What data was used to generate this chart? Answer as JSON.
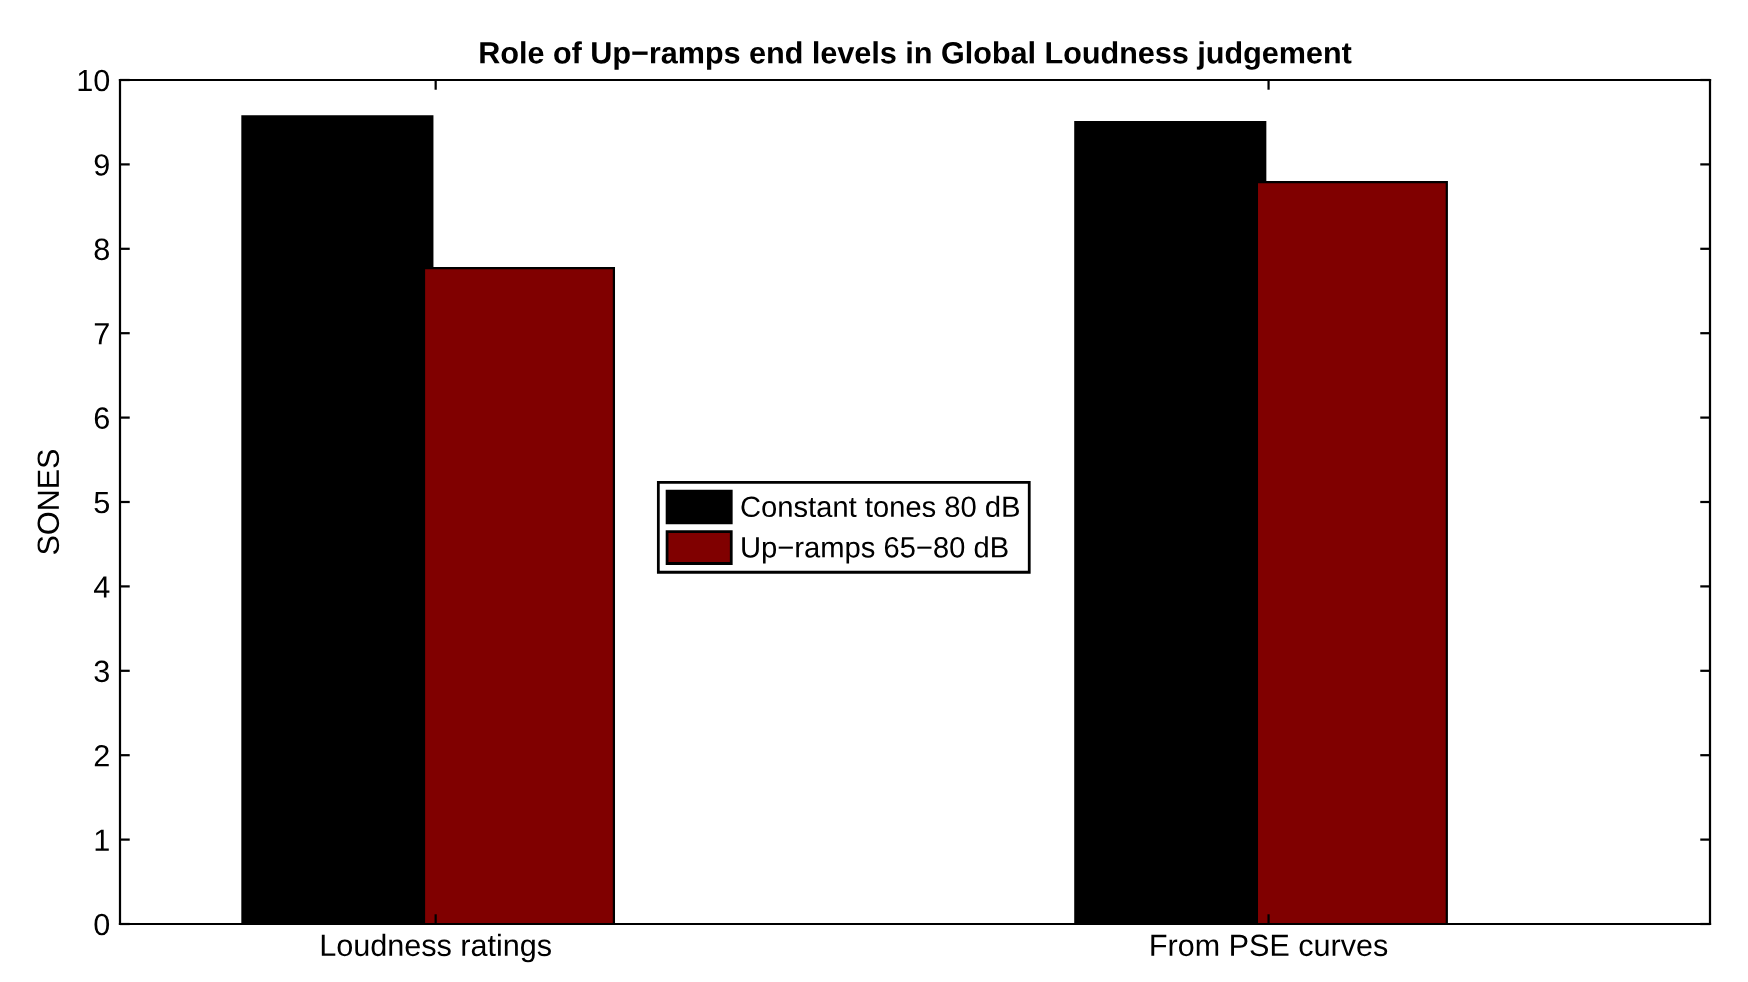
{
  "chart_data": {
    "type": "bar",
    "title": "Role of Up−ramps end levels in Global Loudness judgement",
    "ylabel": "SONES",
    "categories": [
      "Loudness ratings",
      "From PSE curves"
    ],
    "series": [
      {
        "name": "Constant tones 80 dB",
        "color": "#000000",
        "values": [
          9.57,
          9.5
        ]
      },
      {
        "name": "Up−ramps 65−80 dB",
        "color": "#800000",
        "values": [
          7.77,
          8.79
        ]
      }
    ],
    "ylim": [
      0,
      10
    ],
    "yticks": [
      0,
      1,
      2,
      3,
      4,
      5,
      6,
      7,
      8,
      9,
      10
    ],
    "grid": false,
    "legend": "center"
  }
}
